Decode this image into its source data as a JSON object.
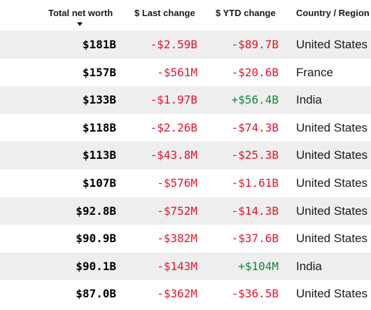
{
  "colors": {
    "negative": "#e4132b",
    "positive": "#0d8a3e",
    "row_shade": "#eeeeee",
    "text": "#1a1a1a"
  },
  "table": {
    "headers": {
      "net_worth": "Total net worth",
      "last_change": "$ Last change",
      "ytd_change": "$ YTD change",
      "country": "Country / Region"
    },
    "sort": {
      "column": "net_worth",
      "direction": "descending",
      "icon": "sort-down-triangle-icon"
    },
    "rows": [
      {
        "net_worth": "$181B",
        "last_change": "-$2.59B",
        "ytd_change": "-$89.7B",
        "country": "United States"
      },
      {
        "net_worth": "$157B",
        "last_change": "-$561M",
        "ytd_change": "-$20.6B",
        "country": "France"
      },
      {
        "net_worth": "$133B",
        "last_change": "-$1.97B",
        "ytd_change": "+$56.4B",
        "country": "India"
      },
      {
        "net_worth": "$118B",
        "last_change": "-$2.26B",
        "ytd_change": "-$74.3B",
        "country": "United States"
      },
      {
        "net_worth": "$113B",
        "last_change": "-$43.8M",
        "ytd_change": "-$25.3B",
        "country": "United States"
      },
      {
        "net_worth": "$107B",
        "last_change": "-$576M",
        "ytd_change": "-$1.61B",
        "country": "United States"
      },
      {
        "net_worth": "$92.8B",
        "last_change": "-$752M",
        "ytd_change": "-$14.3B",
        "country": "United States"
      },
      {
        "net_worth": "$90.9B",
        "last_change": "-$382M",
        "ytd_change": "-$37.6B",
        "country": "United States"
      },
      {
        "net_worth": "$90.1B",
        "last_change": "-$143M",
        "ytd_change": "+$104M",
        "country": "India"
      },
      {
        "net_worth": "$87.0B",
        "last_change": "-$362M",
        "ytd_change": "-$36.5B",
        "country": "United States"
      }
    ]
  }
}
